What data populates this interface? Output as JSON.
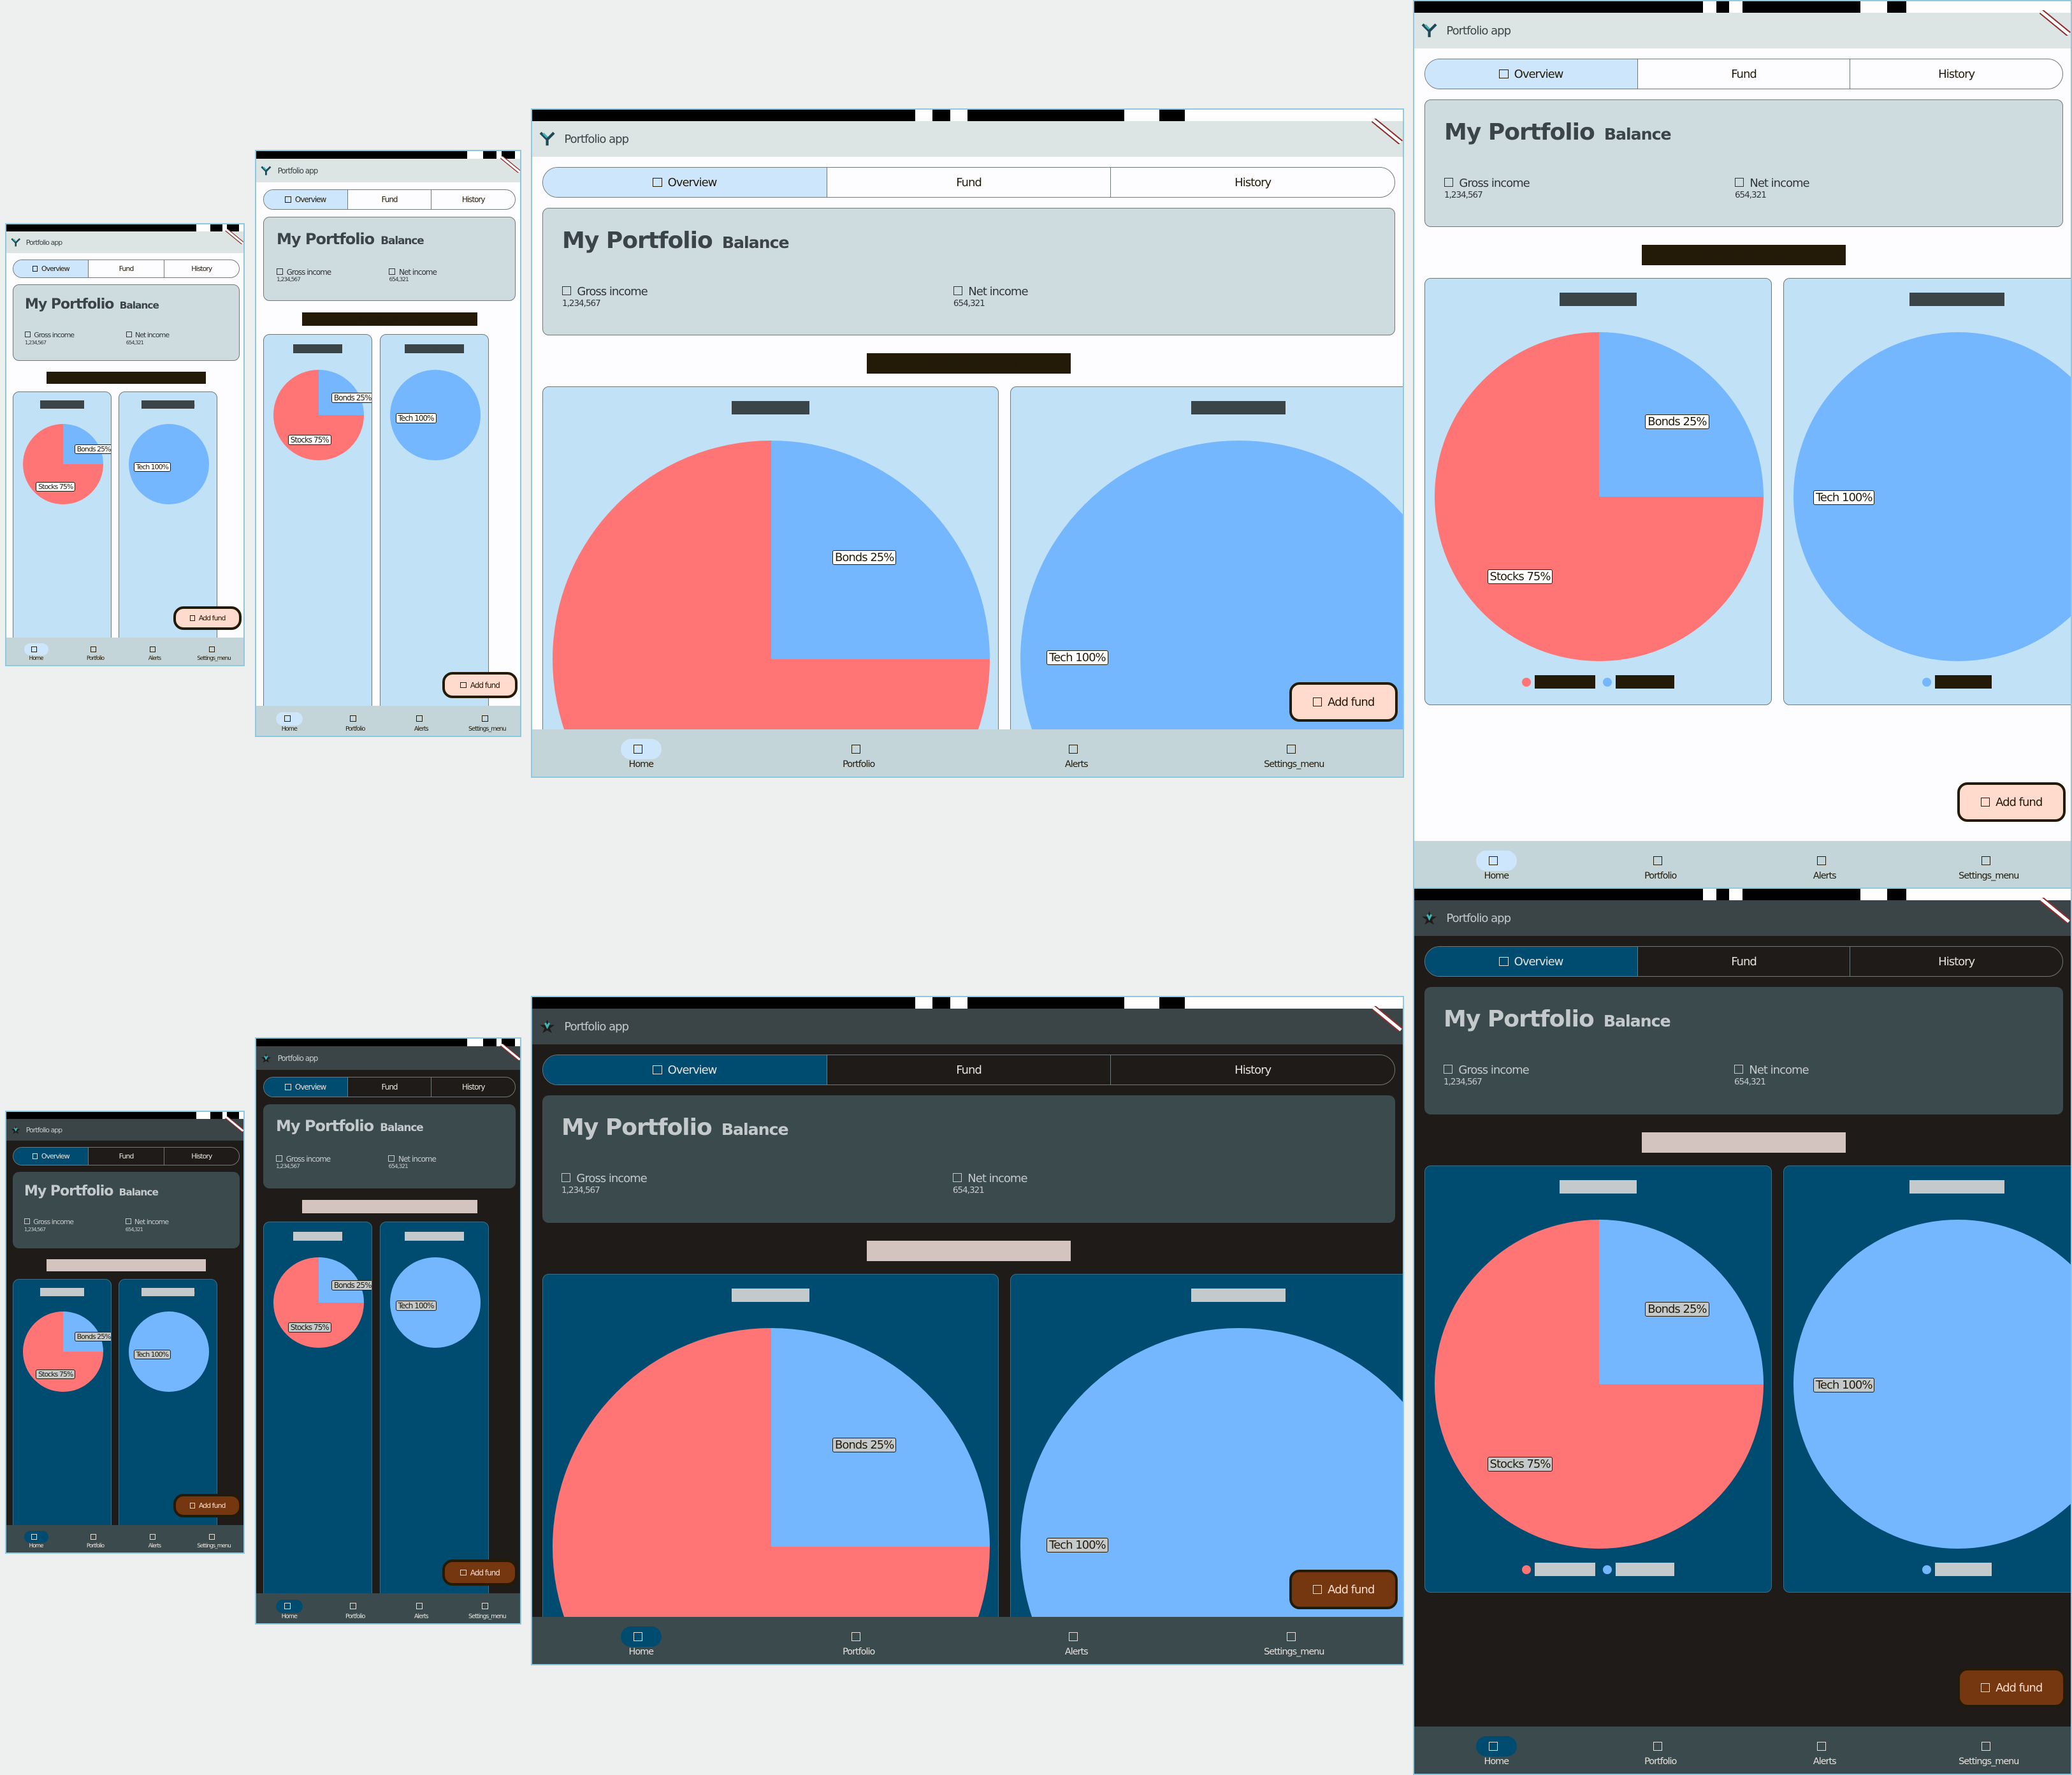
{
  "app": {
    "title": "Portfolio app",
    "tabs": [
      "Overview",
      "Fund",
      "History"
    ],
    "header": {
      "main_title": "My Portfolio",
      "main_sub": "Balance",
      "stat1_label": "Gross income",
      "stat1_value": "1,234,567",
      "stat2_label": "Net income",
      "stat2_value": "654,321"
    },
    "section_title": "Portfolio Allocation",
    "charts": [
      {
        "title": "Fund allocation",
        "labels": [
          "Stocks 75%",
          "Bonds 25%"
        ]
      },
      {
        "title": "Industry allocation",
        "labels": [
          "Tech 100%"
        ]
      }
    ],
    "legend": [
      "Stocks 75%",
      "Bonds 25%"
    ],
    "legend2": [
      "Tech 100%"
    ],
    "fab_label": "Add fund",
    "nav": [
      "Home",
      "Portfolio",
      "Alerts",
      "Settings_menu"
    ]
  },
  "colors": {
    "pie_red": "#ff7474",
    "pie_blue": "#74b7ff",
    "light_card": "#c1e1f7",
    "dark_card": "#004c70",
    "fab_light": "#fedbcc",
    "fab_dark": "#743710"
  },
  "chart_data": [
    {
      "type": "pie",
      "title": "Fund allocation",
      "categories": [
        "Stocks",
        "Bonds"
      ],
      "values": [
        75,
        25
      ]
    },
    {
      "type": "pie",
      "title": "Industry allocation",
      "categories": [
        "Tech"
      ],
      "values": [
        100
      ]
    }
  ],
  "icons": {
    "logo": "app-logo-icon",
    "debug": "debug-ribbon-icon",
    "tab": "square-icon",
    "nav": "square-icon",
    "fab": "square-icon"
  }
}
